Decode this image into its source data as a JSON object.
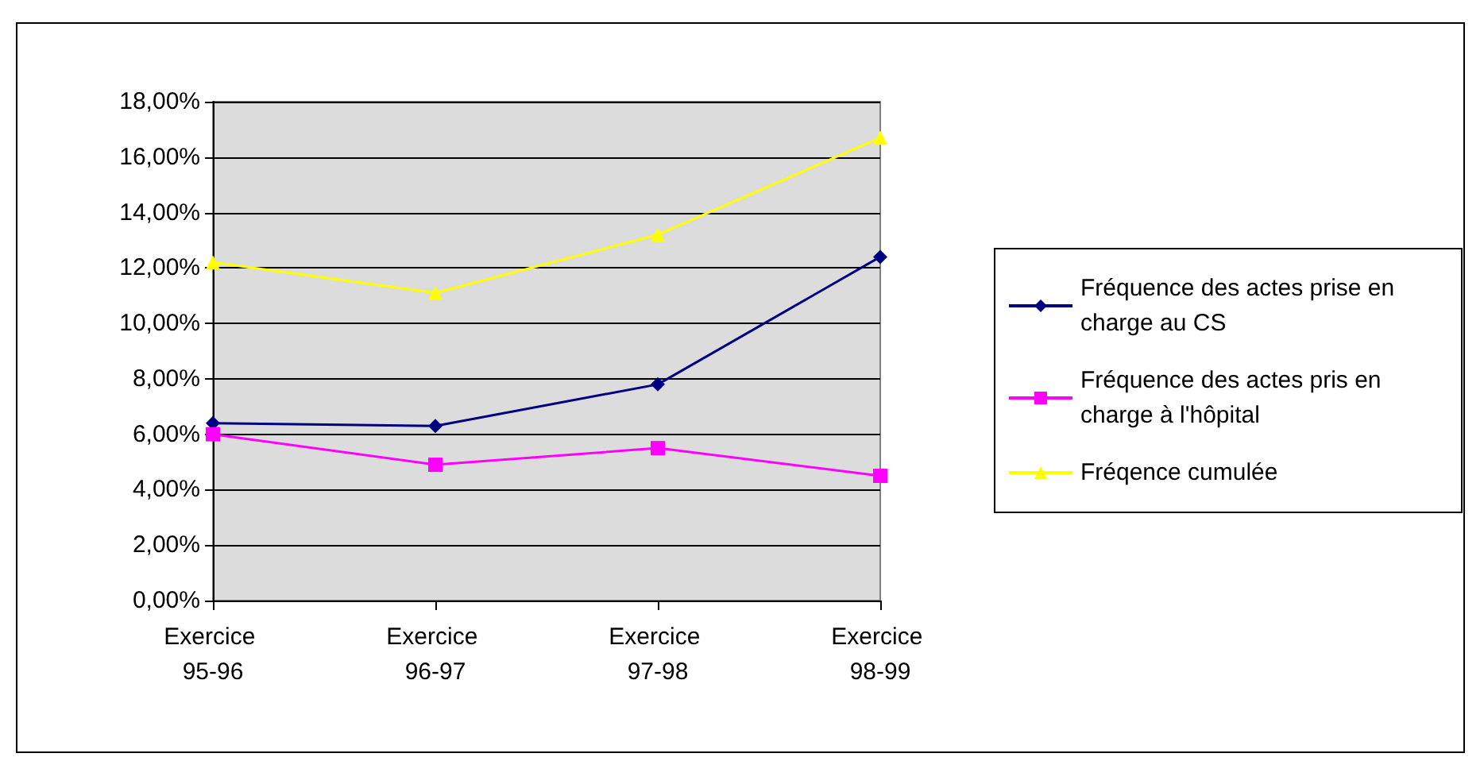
{
  "chart_data": {
    "type": "line",
    "categories": [
      "Exercice 95-96",
      "Exercice 96-97",
      "Exercice 97-98",
      "Exercice 98-99"
    ],
    "series": [
      {
        "name": "Fréquence des actes prise en charge au CS",
        "color": "#000080",
        "marker": "diamond",
        "values": [
          6.4,
          6.3,
          7.8,
          12.4
        ]
      },
      {
        "name": "Fréquence des actes pris en charge à l'hôpital",
        "color": "#ff00ff",
        "marker": "square",
        "values": [
          6.0,
          4.9,
          5.5,
          4.5
        ]
      },
      {
        "name": "Fréqence cumulée",
        "color": "#ffff00",
        "marker": "triangle",
        "values": [
          12.2,
          11.1,
          13.2,
          16.7
        ]
      }
    ],
    "ylim": [
      0,
      18
    ],
    "yticks": [
      {
        "value": 0,
        "label": "0,00%"
      },
      {
        "value": 2,
        "label": "2,00%"
      },
      {
        "value": 4,
        "label": "4,00%"
      },
      {
        "value": 6,
        "label": "6,00%"
      },
      {
        "value": 8,
        "label": "8,00%"
      },
      {
        "value": 10,
        "label": "10,00%"
      },
      {
        "value": 12,
        "label": "12,00%"
      },
      {
        "value": 14,
        "label": "14,00%"
      },
      {
        "value": 16,
        "label": "16,00%"
      },
      {
        "value": 18,
        "label": "18,00%"
      }
    ],
    "grid": "y",
    "legend": "right"
  }
}
